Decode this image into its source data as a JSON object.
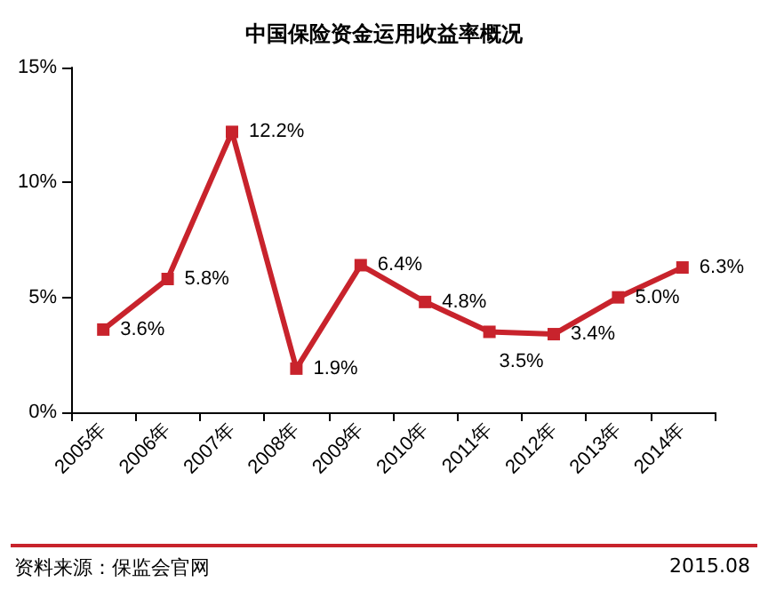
{
  "chart_data": {
    "type": "line",
    "title": "中国保险资金运用收益率概况",
    "categories": [
      "2005年",
      "2006年",
      "2007年",
      "2008年",
      "2009年",
      "2010年",
      "2011年",
      "2012年",
      "2013年",
      "2014年"
    ],
    "series": [
      {
        "color": "#c8232c",
        "values": [
          3.6,
          5.8,
          12.2,
          1.9,
          6.4,
          4.8,
          3.5,
          3.4,
          5.0,
          6.3
        ],
        "value_labels": [
          "3.6%",
          "5.8%",
          "12.2%",
          "1.9%",
          "6.4%",
          "4.8%",
          "3.5%",
          "3.4%",
          "5.0%",
          "6.3%"
        ]
      }
    ],
    "ylim": [
      0,
      15
    ],
    "yticks": [
      {
        "value": 0,
        "label": "0%"
      },
      {
        "value": 5,
        "label": "5%"
      },
      {
        "value": 10,
        "label": "10%"
      },
      {
        "value": 15,
        "label": "15%"
      }
    ],
    "grid": false,
    "marker": "square",
    "line_style": "solid",
    "annotations": [
      "资料来源：保监会官网",
      "2015.08"
    ]
  }
}
